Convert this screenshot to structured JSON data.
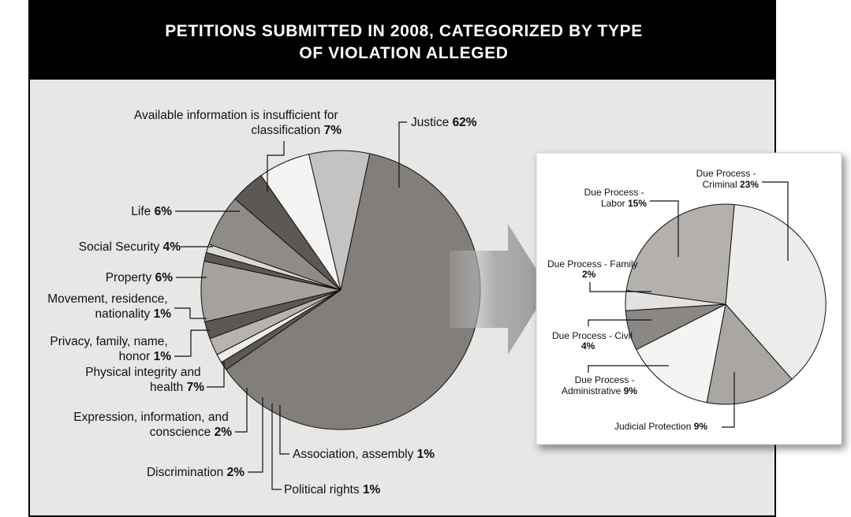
{
  "chart_data": [
    {
      "type": "pie",
      "title": "PETITIONS SUBMITTED IN 2008, CATEGORIZED BY TYPE OF VIOLATION ALLEGED",
      "title_lines": [
        "PETITIONS SUBMITTED IN 2008, CATEGORIZED BY TYPE",
        "OF VIOLATION ALLEGED"
      ],
      "slices": [
        {
          "key": "justice",
          "label": "Justice",
          "value": 62,
          "value_label": "62%",
          "color": "#827e7b"
        },
        {
          "key": "association",
          "label": "Association, assembly",
          "value": 1,
          "value_label": "1%",
          "color": "#5d5855"
        },
        {
          "key": "political",
          "label": "Political rights",
          "value": 1,
          "value_label": "1%",
          "color": "#ececea"
        },
        {
          "key": "discrimination",
          "label": "Discrimination",
          "value": 2,
          "value_label": "2%",
          "color": "#b6b3b0"
        },
        {
          "key": "expression",
          "label": "Expression, information, and conscience",
          "value": 2,
          "value_label": "2%",
          "color": "#5d5855"
        },
        {
          "key": "physical",
          "label": "Physical integrity and health",
          "value": 7,
          "value_label": "7%",
          "color": "#a4a19e"
        },
        {
          "key": "privacy",
          "label": "Privacy, family, name, honor",
          "value": 1,
          "value_label": "1%",
          "color": "#5d5855"
        },
        {
          "key": "movement",
          "label": "Movement, residence, nationality",
          "value": 1,
          "value_label": "1%",
          "color": "#dad8d6"
        },
        {
          "key": "property",
          "label": "Property",
          "value": 6,
          "value_label": "6%",
          "color": "#8f8b88"
        },
        {
          "key": "social",
          "label": "Social Security",
          "value": 4,
          "value_label": "4%",
          "color": "#5d5855"
        },
        {
          "key": "life",
          "label": "Life",
          "value": 6,
          "value_label": "6%",
          "color": "#f4f4f3"
        },
        {
          "key": "insufficient",
          "label": "Available information is insufficient for classification",
          "value": 7,
          "value_label": "7%",
          "color": "#c5c3c1"
        }
      ]
    },
    {
      "type": "pie",
      "title": "",
      "slices": [
        {
          "key": "criminal",
          "label": "Due Process - Criminal",
          "value": 23,
          "value_label": "23%",
          "color": "#ececea"
        },
        {
          "key": "judicial",
          "label": "Judicial Protection",
          "value": 9,
          "value_label": "9%",
          "color": "#a9a6a3"
        },
        {
          "key": "administrative",
          "label": "Due Process - Administrative",
          "value": 9,
          "value_label": "9%",
          "color": "#f4f4f3"
        },
        {
          "key": "civil",
          "label": "Due Process - Civil",
          "value": 4,
          "value_label": "4%",
          "color": "#8a8784"
        },
        {
          "key": "family",
          "label": "Due Process - Family",
          "value": 2,
          "value_label": "2%",
          "color": "#e3e2e0"
        },
        {
          "key": "labor",
          "label": "Due Process - Labor",
          "value": 15,
          "value_label": "15%",
          "color": "#b3b0ad"
        }
      ]
    }
  ]
}
